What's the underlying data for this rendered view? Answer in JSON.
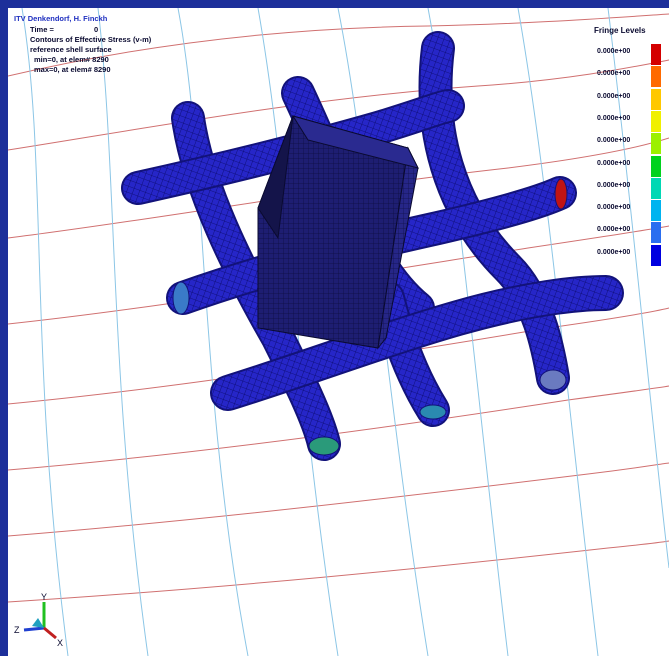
{
  "header": {
    "title": "ITV Denkendorf, H. Finckh",
    "time_label": "Time =",
    "time_value": "0",
    "contour_label": "Contours of Effective Stress (v-m)",
    "surface_label": "reference shell surface",
    "min_label": "min=0, at elem# 8290",
    "max_label": "max=0, at elem# 8290"
  },
  "legend": {
    "title": "Fringe Levels",
    "levels": [
      {
        "value": "0.000e+00",
        "color": "#d40000"
      },
      {
        "value": "0.000e+00",
        "color": "#ff6a00"
      },
      {
        "value": "0.000e+00",
        "color": "#ffc800"
      },
      {
        "value": "0.000e+00",
        "color": "#f0f000"
      },
      {
        "value": "0.000e+00",
        "color": "#9cf000"
      },
      {
        "value": "0.000e+00",
        "color": "#00d21e"
      },
      {
        "value": "0.000e+00",
        "color": "#00d8b4"
      },
      {
        "value": "0.000e+00",
        "color": "#00b4f0"
      },
      {
        "value": "0.000e+00",
        "color": "#2a6ef0"
      },
      {
        "value": "0.000e+00",
        "color": "#0000e0"
      }
    ]
  },
  "triad": {
    "x_label": "X",
    "y_label": "Y",
    "z_label": "Z"
  },
  "colors": {
    "background_frame": "#1d2f9a",
    "viewport": "#ffffff",
    "tube": "#2626c8",
    "tube_dark": "#12127a",
    "block": "#1e1e70",
    "grid_red": "#d07070",
    "grid_blue": "#8cc6e6"
  }
}
